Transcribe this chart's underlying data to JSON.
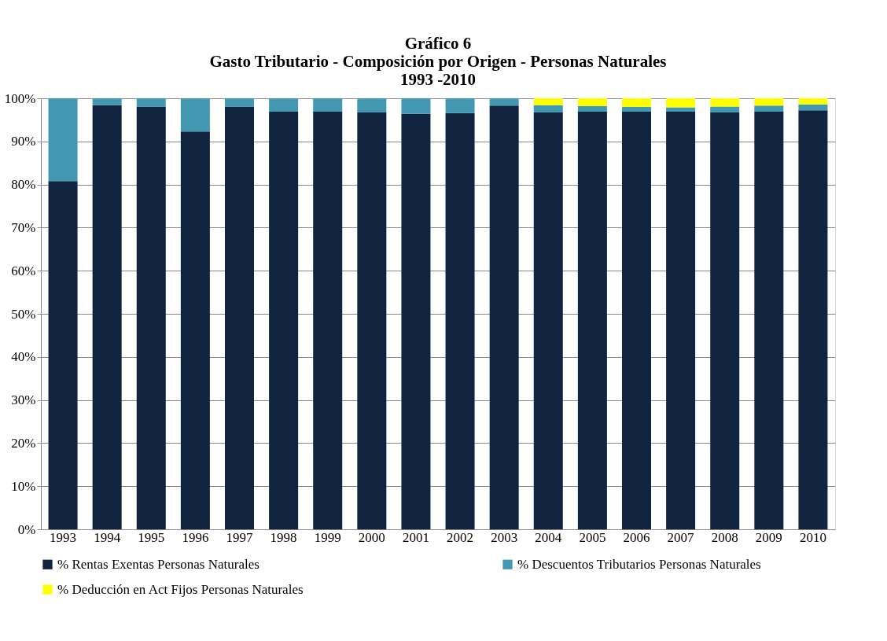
{
  "chart_data": {
    "type": "bar",
    "stacked": true,
    "title": [
      "Gráfico 6",
      "Gasto Tributario - Composición por Origen - Personas Naturales",
      "1993 -2010"
    ],
    "categories": [
      "1993",
      "1994",
      "1995",
      "1996",
      "1997",
      "1998",
      "1999",
      "2000",
      "2001",
      "2002",
      "2003",
      "2004",
      "2005",
      "2006",
      "2007",
      "2008",
      "2009",
      "2010"
    ],
    "series": [
      {
        "name": "% Rentas Exentas Personas Naturales",
        "color": "#10243f",
        "values": [
          80.8,
          98.4,
          98.1,
          92.3,
          98.1,
          96.9,
          96.9,
          96.7,
          96.4,
          96.6,
          98.3,
          96.7,
          96.9,
          96.9,
          96.9,
          96.7,
          96.9,
          97.2
        ]
      },
      {
        "name": "% Descuentos Tributarios Personas Naturales",
        "color": "#4198b0",
        "values": [
          19.2,
          1.6,
          1.9,
          7.7,
          1.9,
          3.1,
          3.1,
          3.3,
          3.6,
          3.4,
          1.7,
          1.7,
          1.3,
          1.1,
          1.0,
          1.4,
          1.4,
          1.4
        ]
      },
      {
        "name": "% Deducción en Act Fijos Personas Naturales",
        "color": "#ffff00",
        "values": [
          0,
          0,
          0,
          0,
          0,
          0,
          0,
          0,
          0,
          0,
          0,
          1.6,
          1.8,
          2.0,
          2.1,
          1.9,
          1.7,
          1.4
        ]
      }
    ],
    "ylim": [
      0,
      100
    ],
    "yticks": [
      {
        "value": 0,
        "label": "0%"
      },
      {
        "value": 10,
        "label": "10%"
      },
      {
        "value": 20,
        "label": "20%"
      },
      {
        "value": 30,
        "label": "30%"
      },
      {
        "value": 40,
        "label": "40%"
      },
      {
        "value": 50,
        "label": "50%"
      },
      {
        "value": 60,
        "label": "60%"
      },
      {
        "value": 70,
        "label": "70%"
      },
      {
        "value": 80,
        "label": "80%"
      },
      {
        "value": 90,
        "label": "90%"
      },
      {
        "value": 100,
        "label": "100%"
      }
    ],
    "grid": "y",
    "legend": "bottom"
  }
}
